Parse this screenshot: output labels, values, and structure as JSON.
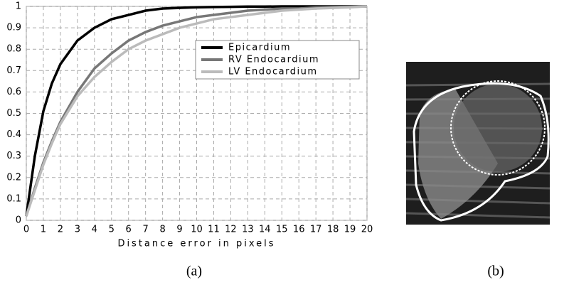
{
  "chart_data": {
    "type": "line",
    "xlabel": "Distance error in pixels",
    "x": [
      0,
      0.5,
      1,
      1.5,
      2,
      3,
      4,
      5,
      6,
      7,
      8,
      9,
      10,
      11,
      12,
      13,
      14,
      15,
      16,
      17,
      18,
      19,
      20
    ],
    "series": [
      {
        "name": "Epicardium",
        "color": "#000000",
        "values": [
          0.02,
          0.3,
          0.51,
          0.64,
          0.73,
          0.84,
          0.9,
          0.94,
          0.96,
          0.98,
          0.99,
          0.993,
          0.996,
          0.997,
          0.998,
          0.999,
          0.999,
          1,
          1,
          1,
          1,
          1,
          1
        ]
      },
      {
        "name": "RV Endocardium",
        "color": "#777777",
        "values": [
          0.02,
          0.15,
          0.27,
          0.37,
          0.46,
          0.6,
          0.71,
          0.78,
          0.84,
          0.88,
          0.91,
          0.93,
          0.95,
          0.96,
          0.97,
          0.98,
          0.985,
          0.99,
          0.99,
          0.995,
          0.997,
          0.998,
          1
        ]
      },
      {
        "name": "LV Endocardium",
        "color": "#bbbbbb",
        "values": [
          0.02,
          0.14,
          0.26,
          0.36,
          0.45,
          0.58,
          0.67,
          0.74,
          0.8,
          0.84,
          0.87,
          0.9,
          0.92,
          0.94,
          0.95,
          0.96,
          0.97,
          0.98,
          0.985,
          0.99,
          0.993,
          0.996,
          1
        ]
      }
    ],
    "xlim": [
      0,
      20
    ],
    "ylim": [
      0,
      1
    ],
    "xticks": [
      0,
      1,
      2,
      3,
      4,
      5,
      6,
      7,
      8,
      9,
      10,
      11,
      12,
      13,
      14,
      15,
      16,
      17,
      18,
      19,
      20
    ],
    "yticks": [
      0,
      0.1,
      0.2,
      0.3,
      0.4,
      0.5,
      0.6,
      0.7,
      0.8,
      0.9,
      1
    ],
    "grid": true,
    "legend": "upper right"
  },
  "captions": [
    "(a)",
    "(b)"
  ]
}
